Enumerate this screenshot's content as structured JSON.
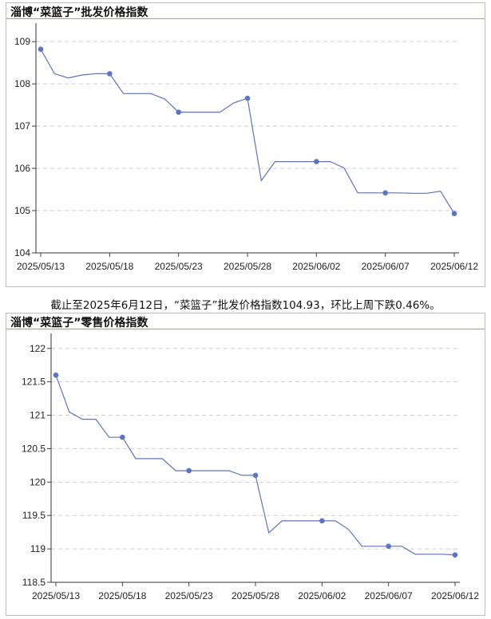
{
  "charts": [
    {
      "panel_title": "淄博“菜篮子”批发价格指数",
      "chart_data": {
        "type": "line",
        "title": "淄博“菜篮子”批发价格指数",
        "xlabel": "",
        "ylabel": "",
        "x_ticks": [
          "2025/05/13",
          "2025/05/18",
          "2025/05/23",
          "2025/05/28",
          "2025/06/02",
          "2025/06/07",
          "2025/06/12"
        ],
        "y_ticks": [
          "104",
          "105",
          "106",
          "107",
          "108",
          "109"
        ],
        "ylim": [
          104,
          109.4
        ],
        "grid": "horizontal dashed",
        "series": [
          {
            "color": "#5b74c4",
            "x": [
              "2025/05/13",
              "2025/05/14",
              "2025/05/15",
              "2025/05/16",
              "2025/05/17",
              "2025/05/18",
              "2025/05/19",
              "2025/05/20",
              "2025/05/21",
              "2025/05/22",
              "2025/05/23",
              "2025/05/24",
              "2025/05/25",
              "2025/05/26",
              "2025/05/27",
              "2025/05/28",
              "2025/05/29",
              "2025/05/30",
              "2025/05/31",
              "2025/06/01",
              "2025/06/02",
              "2025/06/03",
              "2025/06/04",
              "2025/06/05",
              "2025/06/06",
              "2025/06/07",
              "2025/06/08",
              "2025/06/09",
              "2025/06/10",
              "2025/06/11",
              "2025/06/12"
            ],
            "values": [
              108.82,
              108.24,
              108.14,
              108.21,
              108.24,
              108.24,
              107.77,
              107.77,
              107.77,
              107.64,
              107.33,
              107.33,
              107.33,
              107.33,
              107.55,
              107.66,
              105.71,
              106.16,
              106.16,
              106.16,
              106.16,
              106.16,
              106.01,
              105.42,
              105.42,
              105.42,
              105.42,
              105.41,
              105.41,
              105.46,
              104.93
            ],
            "markers_at": [
              "2025/05/13",
              "2025/05/18",
              "2025/05/23",
              "2025/05/28",
              "2025/06/02",
              "2025/06/07",
              "2025/06/12"
            ]
          }
        ]
      }
    },
    {
      "panel_title": "淄博“菜篮子”零售价格指数",
      "chart_data": {
        "type": "line",
        "title": "淄博“菜篮子”零售价格指数",
        "xlabel": "",
        "ylabel": "",
        "x_ticks": [
          "2025/05/13",
          "2025/05/18",
          "2025/05/23",
          "2025/05/28",
          "2025/06/02",
          "2025/06/07",
          "2025/06/12"
        ],
        "y_ticks": [
          "118.5",
          "119",
          "119.5",
          "120",
          "120.5",
          "121",
          "121.5",
          "122"
        ],
        "ylim": [
          118.5,
          122.2
        ],
        "grid": "horizontal dashed",
        "series": [
          {
            "color": "#5b74c4",
            "x": [
              "2025/05/13",
              "2025/05/14",
              "2025/05/15",
              "2025/05/16",
              "2025/05/17",
              "2025/05/18",
              "2025/05/19",
              "2025/05/20",
              "2025/05/21",
              "2025/05/22",
              "2025/05/23",
              "2025/05/24",
              "2025/05/25",
              "2025/05/26",
              "2025/05/27",
              "2025/05/28",
              "2025/05/29",
              "2025/05/30",
              "2025/05/31",
              "2025/06/01",
              "2025/06/02",
              "2025/06/03",
              "2025/06/04",
              "2025/06/05",
              "2025/06/06",
              "2025/06/07",
              "2025/06/08",
              "2025/06/09",
              "2025/06/10",
              "2025/06/11",
              "2025/06/12"
            ],
            "values": [
              121.6,
              121.05,
              120.94,
              120.94,
              120.67,
              120.67,
              120.35,
              120.35,
              120.35,
              120.17,
              120.17,
              120.17,
              120.17,
              120.17,
              120.1,
              120.1,
              119.24,
              119.42,
              119.42,
              119.42,
              119.42,
              119.42,
              119.29,
              119.04,
              119.04,
              119.04,
              119.04,
              118.92,
              118.92,
              118.92,
              118.91
            ],
            "markers_at": [
              "2025/05/13",
              "2025/05/18",
              "2025/05/23",
              "2025/05/28",
              "2025/06/02",
              "2025/06/07",
              "2025/06/12"
            ]
          }
        ]
      }
    }
  ],
  "caption": "截止至2025年6月12日，“菜篮子”批发价格指数104.93，环比上周下跌0.46%。"
}
